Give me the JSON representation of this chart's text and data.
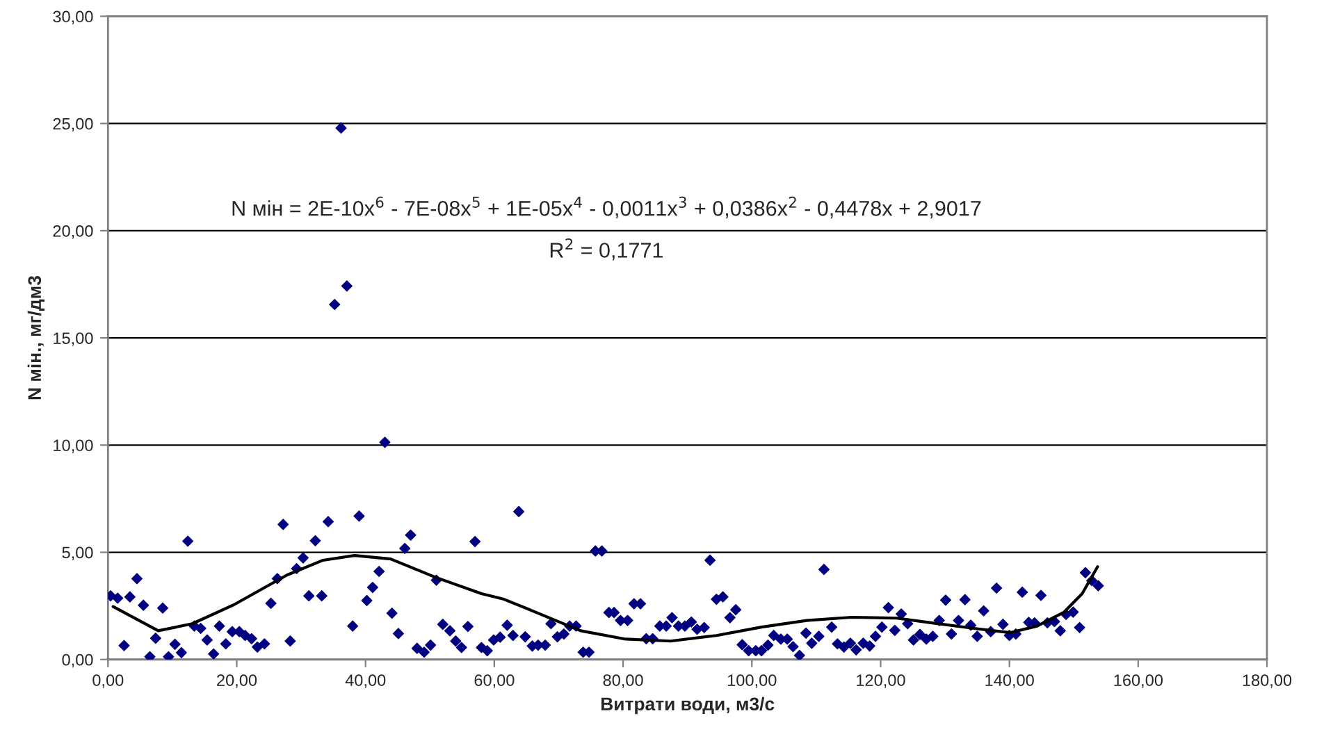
{
  "chart_data": {
    "type": "scatter",
    "xlabel": "Витрати води, м3/с",
    "ylabel": "N мін., мг/дм3",
    "annotations": [
      "N мін = 2E-10x$^{6}$ - 7E-08x$^{5}$ + 1E-05x$^{4}$ - 0,0011x$^{3}$ + 0,0386x$^{2}$ - 0,4478x + 2,9017",
      "R$^{2}$ = 0,1771"
    ],
    "xlim": [
      0,
      180
    ],
    "ylim": [
      0,
      30
    ],
    "xticks": [
      {
        "value": 0,
        "label": "0,00"
      },
      {
        "value": 20,
        "label": "20,00"
      },
      {
        "value": 40,
        "label": "40,00"
      },
      {
        "value": 60,
        "label": "60,00"
      },
      {
        "value": 80,
        "label": "80,00"
      },
      {
        "value": 100,
        "label": "100,00"
      },
      {
        "value": 120,
        "label": "120,00"
      },
      {
        "value": 140,
        "label": "140,00"
      },
      {
        "value": 160,
        "label": "160,00"
      },
      {
        "value": 180,
        "label": "180,00"
      }
    ],
    "yticks": [
      {
        "value": 0,
        "label": "0,00"
      },
      {
        "value": 5,
        "label": "5,00"
      },
      {
        "value": 10,
        "label": "10,00"
      },
      {
        "value": 15,
        "label": "15,00"
      },
      {
        "value": 20,
        "label": "20,00"
      },
      {
        "value": 25,
        "label": "25,00"
      },
      {
        "value": 30,
        "label": "30,00"
      }
    ],
    "grid": "y",
    "legend": false,
    "marker": "diamond",
    "series": [
      {
        "color": "#000080",
        "x": [
          0.4,
          1.5,
          2.5,
          3.4,
          4.5,
          5.5,
          6.5,
          7.4,
          8.5,
          9.4,
          10.4,
          11.4,
          12.4,
          13.4,
          14.4,
          15.4,
          16.4,
          17.3,
          18.3,
          19.3,
          20.4,
          21.3,
          22.3,
          23.2,
          24.3,
          25.3,
          26.3,
          27.2,
          28.3,
          29.3,
          30.3,
          31.2,
          32.2,
          33.2,
          34.2,
          35.2,
          36.2,
          37.1,
          38.0,
          39.0,
          40.2,
          41.1,
          42.1,
          43.0,
          44.1,
          45.1,
          46.1,
          47.0,
          48.0,
          49.1,
          50.1,
          51.0,
          52.0,
          53.1,
          54.0,
          54.9,
          55.9,
          57.0,
          58.0,
          58.9,
          59.9,
          60.9,
          62.0,
          62.9,
          63.8,
          64.8,
          65.9,
          66.8,
          67.9,
          68.8,
          69.8,
          70.8,
          71.7,
          72.7,
          73.8,
          74.7,
          75.7,
          76.7,
          77.8,
          78.6,
          79.6,
          80.7,
          81.7,
          82.7,
          83.6,
          84.6,
          85.7,
          86.7,
          87.6,
          88.6,
          89.6,
          90.6,
          91.5,
          92.6,
          93.5,
          94.5,
          95.5,
          96.6,
          97.5,
          98.5,
          99.5,
          100.6,
          101.5,
          102.5,
          103.4,
          104.5,
          105.5,
          106.4,
          107.4,
          108.4,
          109.3,
          110.4,
          111.2,
          112.4,
          113.3,
          114.3,
          115.3,
          116.2,
          117.3,
          118.3,
          119.2,
          120.2,
          121.2,
          122.2,
          123.2,
          124.2,
          125.1,
          126.1,
          127.1,
          128.1,
          129.1,
          130.1,
          131.0,
          132.1,
          133.1,
          134.0,
          135.0,
          136.0,
          137.1,
          138.0,
          139.0,
          140.0,
          141.0,
          142.0,
          143.0,
          143.9,
          144.9,
          145.9,
          147.0,
          147.9,
          148.8,
          149.9,
          150.9,
          151.8,
          152.8,
          153.8
        ],
        "values": [
          2.97,
          2.86,
          0.65,
          2.92,
          3.77,
          2.53,
          0.13,
          0.99,
          2.4,
          0.13,
          0.71,
          0.32,
          5.52,
          1.56,
          1.45,
          0.91,
          0.26,
          1.56,
          0.73,
          1.3,
          1.3,
          1.12,
          0.97,
          0.58,
          0.73,
          2.62,
          3.77,
          6.3,
          0.86,
          4.24,
          4.74,
          2.97,
          5.54,
          2.97,
          6.43,
          16.56,
          24.79,
          17.42,
          1.56,
          6.69,
          2.75,
          3.36,
          4.11,
          10.13,
          2.16,
          1.21,
          5.18,
          5.8,
          0.52,
          0.34,
          0.67,
          3.7,
          1.64,
          1.34,
          0.86,
          0.56,
          1.54,
          5.5,
          0.56,
          0.41,
          0.91,
          1.04,
          1.6,
          1.12,
          6.9,
          1.06,
          0.63,
          0.67,
          0.67,
          1.67,
          1.06,
          1.19,
          1.56,
          1.56,
          0.34,
          0.34,
          5.06,
          5.06,
          2.19,
          2.19,
          1.82,
          1.82,
          2.6,
          2.6,
          0.97,
          0.97,
          1.56,
          1.56,
          1.95,
          1.56,
          1.56,
          1.75,
          1.41,
          1.49,
          4.63,
          2.81,
          2.92,
          1.95,
          2.32,
          0.69,
          0.41,
          0.41,
          0.41,
          0.67,
          1.12,
          0.95,
          0.95,
          0.6,
          0.19,
          1.23,
          0.76,
          1.08,
          4.2,
          1.51,
          0.73,
          0.58,
          0.76,
          0.45,
          0.76,
          0.63,
          1.08,
          1.51,
          2.42,
          1.36,
          2.12,
          1.67,
          0.91,
          1.17,
          0.95,
          1.08,
          1.82,
          2.77,
          1.19,
          1.82,
          2.79,
          1.6,
          1.08,
          2.27,
          1.3,
          3.33,
          1.64,
          1.12,
          1.19,
          3.14,
          1.73,
          1.71,
          2.99,
          1.71,
          1.77,
          1.34,
          2.1,
          2.21,
          1.49,
          4.05,
          3.68,
          3.44
        ]
      },
      {
        "type": "line",
        "color": "#000000",
        "marker": "none",
        "x": [
          0.8,
          7.8,
          13.1,
          19.4,
          27.8,
          33.4,
          38.3,
          43.9,
          50.9,
          58.0,
          61.5,
          66.4,
          73.4,
          80.4,
          87.4,
          94.5,
          101.5,
          108.5,
          115.5,
          122.5,
          127.4,
          134.5,
          140.1,
          144.3,
          148.5,
          151.3,
          153.7
        ],
        "values": [
          2.47,
          1.34,
          1.67,
          2.53,
          3.94,
          4.63,
          4.85,
          4.69,
          3.83,
          3.07,
          2.81,
          2.21,
          1.34,
          0.95,
          0.86,
          1.12,
          1.51,
          1.82,
          1.97,
          1.93,
          1.73,
          1.45,
          1.25,
          1.56,
          2.21,
          3.07,
          4.33
        ]
      }
    ]
  }
}
